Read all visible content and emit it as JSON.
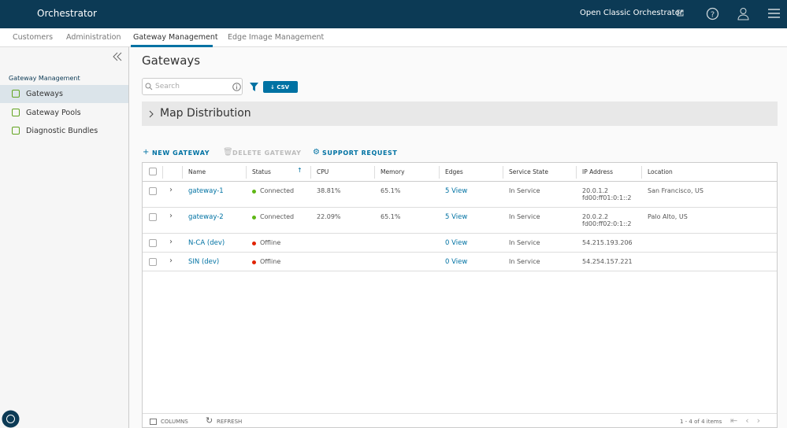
{
  "header": {
    "title": "Orchestrator",
    "link": "Open Classic Orchestrator"
  },
  "tabs": [
    "Customers",
    "Administration",
    "Gateway Management",
    "Edge Image Management"
  ],
  "sidebar": {
    "section": "Gateway Management",
    "items": [
      "Gateways",
      "Gateway Pools",
      "Diagnostic Bundles"
    ]
  },
  "page": {
    "title": "Gateways",
    "search_placeholder": "Search",
    "csv": "CSV",
    "map": "Map Distribution",
    "actions": [
      "NEW GATEWAY",
      "DELETE GATEWAY",
      "SUPPORT REQUEST"
    ]
  },
  "table": {
    "columns": [
      "Name",
      "Status",
      "CPU",
      "Memory",
      "Edges",
      "Service State",
      "IP Address",
      "Location"
    ],
    "rows": [
      {
        "name": "gateway-1",
        "status": "Connected",
        "cpu": "38.81%",
        "memory": "65.1%",
        "edges": "5 View",
        "state": "In Service",
        "ip": [
          "20.0.1.2",
          "fd00:ff01:0:1::2"
        ],
        "location": "San Francisco, US"
      },
      {
        "name": "gateway-2",
        "status": "Connected",
        "cpu": "22.09%",
        "memory": "65.1%",
        "edges": "5 View",
        "state": "In Service",
        "ip": [
          "20.0.2.2",
          "fd00:ff02:0:1::2"
        ],
        "location": "Palo Alto, US"
      },
      {
        "name": "N-CA (dev)",
        "status": "Offline",
        "edges": "0 View",
        "state": "In Service",
        "ip": [
          "54.215.193.206"
        ]
      },
      {
        "name": "SIN (dev)",
        "status": "Offline",
        "edges": "0 View",
        "state": "In Service",
        "ip": [
          "54.254.157.221"
        ]
      }
    ]
  },
  "footer": {
    "columns": "COLUMNS",
    "refresh": "REFRESH",
    "count": "1 - 4 of 4 items"
  }
}
